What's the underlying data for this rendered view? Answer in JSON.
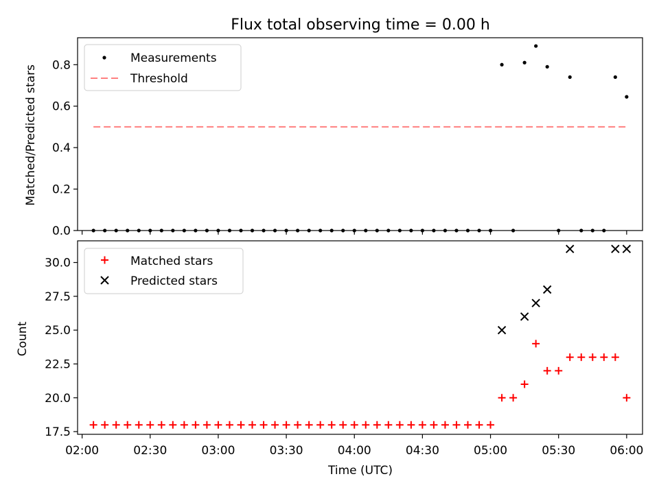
{
  "chart_data": [
    {
      "type": "scatter",
      "title": "Flux total observing time = 0.00 h",
      "xlabel": "",
      "ylabel": "Matched/Predicted stars",
      "ylim": [
        0,
        0.93
      ],
      "yticks": [
        "0.0",
        "0.2",
        "0.4",
        "0.6",
        "0.8"
      ],
      "ytick_values": [
        0,
        0.2,
        0.4,
        0.6,
        0.8
      ],
      "legend_position": "upper-left",
      "series": [
        {
          "name": "Measurements",
          "marker": "dot",
          "color": "#000000",
          "x": [
            "02:05",
            "02:10",
            "02:15",
            "02:20",
            "02:25",
            "02:30",
            "02:35",
            "02:40",
            "02:45",
            "02:50",
            "02:55",
            "03:00",
            "03:05",
            "03:10",
            "03:15",
            "03:20",
            "03:25",
            "03:30",
            "03:35",
            "03:40",
            "03:45",
            "03:50",
            "03:55",
            "04:00",
            "04:05",
            "04:10",
            "04:15",
            "04:20",
            "04:25",
            "04:30",
            "04:35",
            "04:40",
            "04:45",
            "04:50",
            "04:55",
            "05:00",
            "05:05",
            "05:10",
            "05:15",
            "05:20",
            "05:25",
            "05:30",
            "05:35",
            "05:40",
            "05:45",
            "05:50",
            "05:55",
            "06:00"
          ],
          "values": [
            0,
            0,
            0,
            0,
            0,
            0,
            0,
            0,
            0,
            0,
            0,
            0,
            0,
            0,
            0,
            0,
            0,
            0,
            0,
            0,
            0,
            0,
            0,
            0,
            0,
            0,
            0,
            0,
            0,
            0,
            0,
            0,
            0,
            0,
            0,
            0,
            0.8,
            0,
            0.81,
            0.89,
            0.79,
            0,
            0.74,
            0,
            0,
            0,
            0.74,
            0.645
          ]
        },
        {
          "name": "Threshold",
          "marker": "dashed-line",
          "color": "#ff7f7f",
          "x": [
            "02:05",
            "06:00"
          ],
          "values": [
            0.5,
            0.5
          ]
        }
      ]
    },
    {
      "type": "scatter",
      "xlabel": "Time (UTC)",
      "ylabel": "Count",
      "ylim": [
        17.3,
        31.6
      ],
      "yticks": [
        "17.5",
        "20.0",
        "22.5",
        "25.0",
        "27.5",
        "30.0"
      ],
      "ytick_values": [
        17.5,
        20,
        22.5,
        25,
        27.5,
        30
      ],
      "xlim": [
        "01:58",
        "06:07"
      ],
      "xticks": [
        "02:00",
        "02:30",
        "03:00",
        "03:30",
        "04:00",
        "04:30",
        "05:00",
        "05:30",
        "06:00"
      ],
      "legend_position": "upper-left",
      "series": [
        {
          "name": "Matched stars",
          "marker": "plus",
          "color": "#ff0000",
          "x": [
            "02:05",
            "02:10",
            "02:15",
            "02:20",
            "02:25",
            "02:30",
            "02:35",
            "02:40",
            "02:45",
            "02:50",
            "02:55",
            "03:00",
            "03:05",
            "03:10",
            "03:15",
            "03:20",
            "03:25",
            "03:30",
            "03:35",
            "03:40",
            "03:45",
            "03:50",
            "03:55",
            "04:00",
            "04:05",
            "04:10",
            "04:15",
            "04:20",
            "04:25",
            "04:30",
            "04:35",
            "04:40",
            "04:45",
            "04:50",
            "04:55",
            "05:00",
            "05:05",
            "05:10",
            "05:15",
            "05:20",
            "05:25",
            "05:30",
            "05:35",
            "05:40",
            "05:45",
            "05:50",
            "05:55",
            "06:00"
          ],
          "values": [
            18,
            18,
            18,
            18,
            18,
            18,
            18,
            18,
            18,
            18,
            18,
            18,
            18,
            18,
            18,
            18,
            18,
            18,
            18,
            18,
            18,
            18,
            18,
            18,
            18,
            18,
            18,
            18,
            18,
            18,
            18,
            18,
            18,
            18,
            18,
            18,
            20,
            20,
            21,
            24,
            22,
            22,
            23,
            23,
            23,
            23,
            23,
            20
          ]
        },
        {
          "name": "Predicted stars",
          "marker": "x",
          "color": "#000000",
          "x": [
            "05:05",
            "05:15",
            "05:20",
            "05:25",
            "05:35",
            "05:55",
            "06:00"
          ],
          "values": [
            25,
            26,
            27,
            28,
            31,
            31,
            31
          ]
        }
      ]
    }
  ]
}
